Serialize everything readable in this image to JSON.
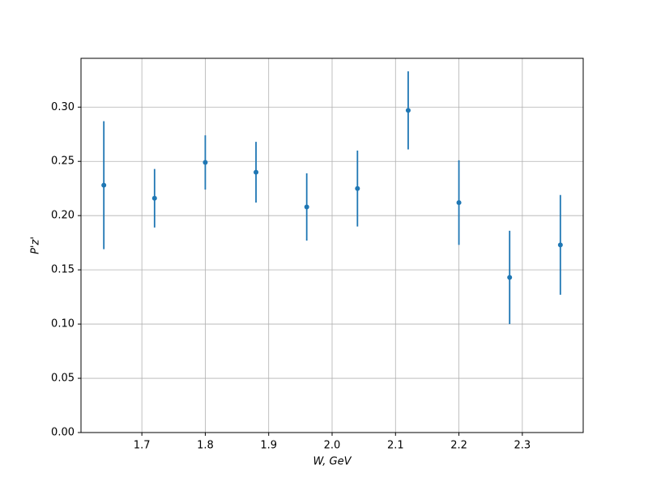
{
  "chart_data": {
    "type": "errorbar",
    "x_label": "W, GeV",
    "y_label": "P'z'",
    "x": [
      1.64,
      1.72,
      1.8,
      1.88,
      1.96,
      2.04,
      2.12,
      2.2,
      2.28,
      2.36
    ],
    "values": [
      0.228,
      0.216,
      0.249,
      0.24,
      0.208,
      0.225,
      0.297,
      0.212,
      0.143,
      0.173
    ],
    "errors": [
      0.059,
      0.027,
      0.025,
      0.028,
      0.031,
      0.035,
      0.036,
      0.039,
      0.043,
      0.046
    ],
    "color": "#1f77b4",
    "xlim": [
      1.604,
      2.396
    ],
    "ylim": [
      0,
      0.345
    ],
    "xticks": [
      1.7,
      1.8,
      1.9,
      {
        "value": 2,
        "label": "2.0"
      },
      2.1,
      2.2,
      2.3
    ],
    "yticks": [
      {
        "value": 0,
        "label": "0.00"
      },
      {
        "value": 0.05,
        "label": "0.05"
      },
      {
        "value": 0.1,
        "label": "0.10"
      },
      {
        "value": 0.15,
        "label": "0.15"
      },
      {
        "value": 0.2,
        "label": "0.20"
      },
      {
        "value": 0.25,
        "label": "0.25"
      },
      {
        "value": 0.3,
        "label": "0.30"
      }
    ],
    "grid": true
  }
}
